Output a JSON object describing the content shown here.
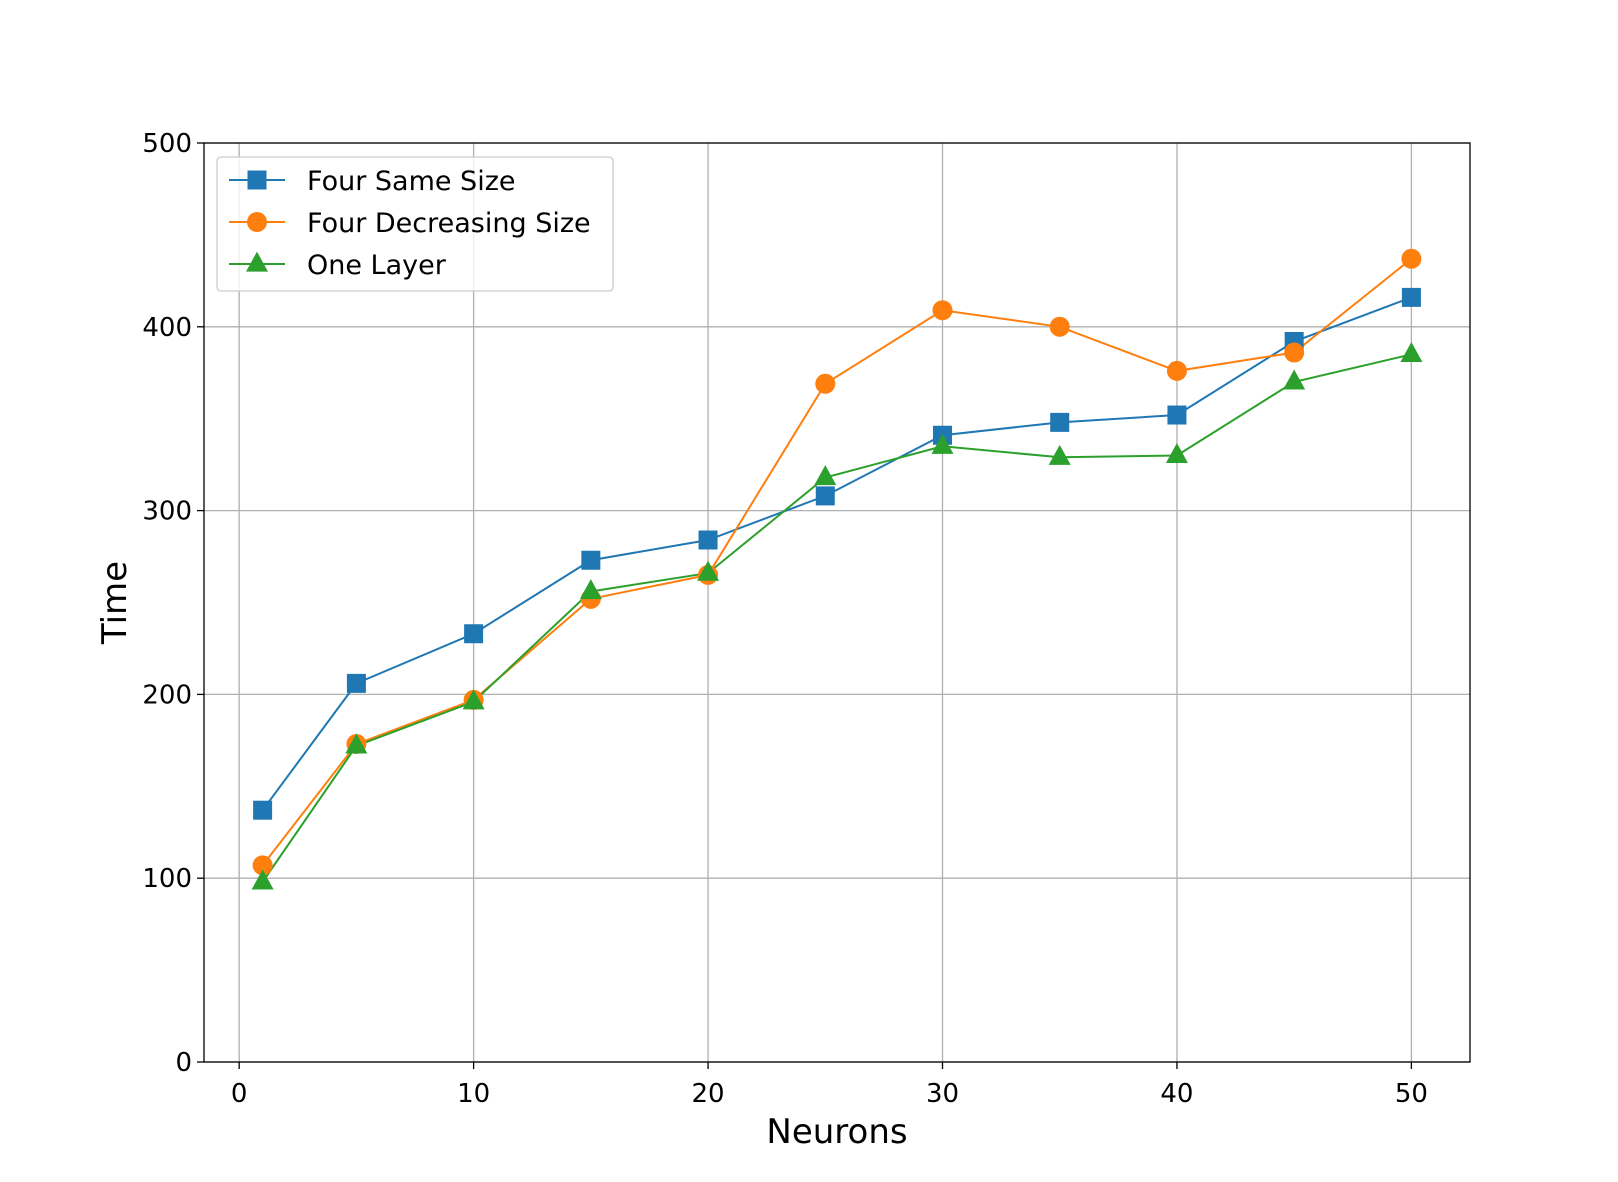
{
  "chart_data": {
    "type": "line",
    "title": "",
    "xlabel": "Neurons",
    "ylabel": "Time",
    "xlim": [
      -1.5,
      52.5
    ],
    "ylim": [
      0,
      500
    ],
    "xticks": [
      0,
      10,
      20,
      30,
      40,
      50
    ],
    "yticks": [
      0,
      100,
      200,
      300,
      400,
      500
    ],
    "grid": true,
    "legend_position": "top-left",
    "x": [
      1,
      5,
      10,
      15,
      20,
      25,
      30,
      35,
      40,
      45,
      50
    ],
    "series": [
      {
        "name": "Four Same Size",
        "color": "#1f77b4",
        "marker": "square",
        "values": [
          137,
          206,
          233,
          273,
          284,
          308,
          341,
          348,
          352,
          392,
          416
        ]
      },
      {
        "name": "Four Decreasing Size",
        "color": "#ff7f0e",
        "marker": "circle",
        "values": [
          107,
          173,
          197,
          252,
          265,
          369,
          409,
          400,
          376,
          386,
          437
        ]
      },
      {
        "name": "One Layer",
        "color": "#2ca02c",
        "marker": "triangle",
        "values": [
          98,
          172,
          196,
          256,
          266,
          318,
          335,
          329,
          330,
          370,
          385
        ]
      }
    ]
  }
}
